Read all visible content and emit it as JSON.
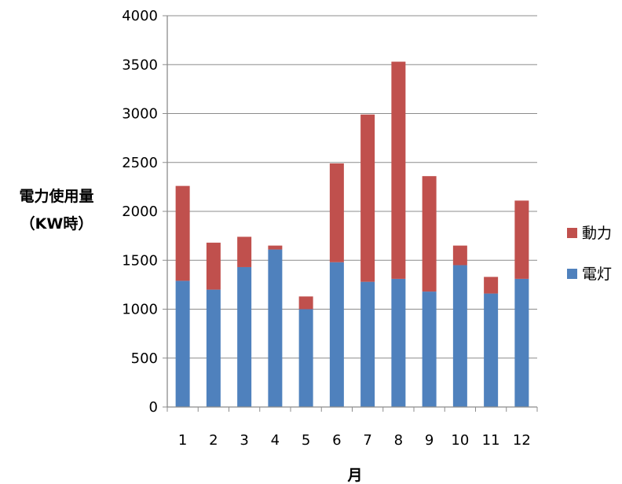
{
  "chart_data": {
    "type": "bar",
    "stacked": true,
    "categories": [
      "1",
      "2",
      "3",
      "4",
      "5",
      "6",
      "7",
      "8",
      "9",
      "10",
      "11",
      "12"
    ],
    "series": [
      {
        "name": "電灯",
        "color": "#4F81BD",
        "values": [
          1290,
          1200,
          1430,
          1610,
          1000,
          1480,
          1280,
          1310,
          1180,
          1450,
          1160,
          1310
        ]
      },
      {
        "name": "動力",
        "color": "#C0504D",
        "values": [
          970,
          480,
          310,
          40,
          130,
          1010,
          1710,
          2220,
          1180,
          200,
          170,
          800
        ]
      }
    ],
    "ylim": [
      0,
      4000
    ],
    "yticks": [
      0,
      500,
      1000,
      1500,
      2000,
      2500,
      3000,
      3500,
      4000
    ],
    "xlabel": "月",
    "ylabel": [
      "電力使用量",
      "（KW時）"
    ],
    "legend": {
      "position": "right",
      "order": [
        "動力",
        "電灯"
      ]
    },
    "grid": true,
    "gridColor": "#8c8c8c",
    "axisColor": "#8c8c8c"
  }
}
